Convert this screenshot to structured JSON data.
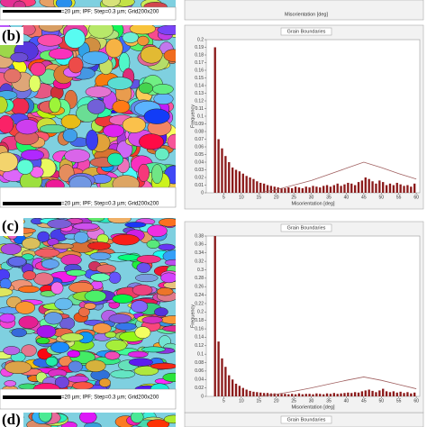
{
  "top_fragment": {
    "caption": "=20 µm; IPF; Step=0.3 µm; Grid200x200",
    "x_label": "Misorientation [deg]"
  },
  "panels": [
    {
      "label": "(b)",
      "map_caption": "=20 µm; IPF; Step=0.3 µm; Grid200x200"
    },
    {
      "label": "(c)",
      "map_caption": "=20 µm; IPF; Step=0.3 µm; Grid200x200"
    },
    {
      "label": "(d)",
      "chart_title": "Grain Boundaries"
    }
  ],
  "chart_data": [
    {
      "type": "histogram",
      "title": "Grain Boundaries",
      "x_label": "Misorientation [deg]",
      "y_label": "Frequency",
      "color": "#8b1a1a",
      "bins": [
        2,
        3,
        4,
        5,
        6,
        7,
        8,
        9,
        10,
        11,
        12,
        13,
        14,
        15,
        16,
        17,
        18,
        19,
        20,
        21,
        22,
        23,
        24,
        25,
        26,
        27,
        28,
        29,
        30,
        31,
        32,
        33,
        34,
        35,
        36,
        37,
        38,
        39,
        40,
        41,
        42,
        43,
        44,
        45,
        46,
        47,
        48,
        49,
        50,
        51,
        52,
        53,
        54,
        55,
        56,
        57,
        58,
        59,
        60
      ],
      "values": [
        0.19,
        0.07,
        0.058,
        0.048,
        0.04,
        0.033,
        0.03,
        0.028,
        0.025,
        0.022,
        0.02,
        0.018,
        0.015,
        0.013,
        0.012,
        0.01,
        0.009,
        0.008,
        0.007,
        0.006,
        0.006,
        0.007,
        0.006,
        0.008,
        0.007,
        0.006,
        0.008,
        0.007,
        0.009,
        0.008,
        0.007,
        0.009,
        0.01,
        0.008,
        0.01,
        0.012,
        0.009,
        0.011,
        0.013,
        0.012,
        0.01,
        0.014,
        0.016,
        0.02,
        0.018,
        0.015,
        0.012,
        0.016,
        0.014,
        0.01,
        0.012,
        0.01,
        0.013,
        0.011,
        0.009,
        0.01,
        0.008,
        0.012
      ],
      "reference_line": {
        "color": "#a06060",
        "x": [
          15,
          20,
          25,
          30,
          35,
          40,
          45,
          50,
          55,
          60
        ],
        "values": [
          0,
          0.004,
          0.01,
          0.016,
          0.024,
          0.032,
          0.04,
          0.033,
          0.025,
          0.018
        ]
      },
      "xlim": [
        0,
        61
      ],
      "xticks": [
        5,
        10,
        15,
        20,
        25,
        30,
        35,
        40,
        45,
        50,
        55,
        60
      ],
      "ylim": [
        0,
        0.2
      ],
      "yticks": [
        0,
        0.01,
        0.02,
        0.03,
        0.04,
        0.05,
        0.06,
        0.07,
        0.08,
        0.09,
        0.1,
        0.11,
        0.12,
        0.13,
        0.14,
        0.15,
        0.16,
        0.17,
        0.18,
        0.19,
        0.2
      ]
    },
    {
      "type": "histogram",
      "title": "Grain Boundaries",
      "x_label": "Misorientation [deg]",
      "y_label": "Frequency",
      "color": "#8b1a1a",
      "bins": [
        2,
        3,
        4,
        5,
        6,
        7,
        8,
        9,
        10,
        11,
        12,
        13,
        14,
        15,
        16,
        17,
        18,
        19,
        20,
        21,
        22,
        23,
        24,
        25,
        26,
        27,
        28,
        29,
        30,
        31,
        32,
        33,
        34,
        35,
        36,
        37,
        38,
        39,
        40,
        41,
        42,
        43,
        44,
        45,
        46,
        47,
        48,
        49,
        50,
        51,
        52,
        53,
        54,
        55,
        56,
        57,
        58,
        59,
        60
      ],
      "values": [
        0.38,
        0.13,
        0.09,
        0.07,
        0.05,
        0.04,
        0.03,
        0.025,
        0.02,
        0.016,
        0.013,
        0.011,
        0.01,
        0.009,
        0.008,
        0.008,
        0.007,
        0.007,
        0.006,
        0.006,
        0.006,
        0.005,
        0.006,
        0.005,
        0.007,
        0.005,
        0.006,
        0.006,
        0.005,
        0.007,
        0.006,
        0.005,
        0.007,
        0.006,
        0.008,
        0.006,
        0.007,
        0.008,
        0.009,
        0.008,
        0.01,
        0.009,
        0.012,
        0.014,
        0.016,
        0.013,
        0.01,
        0.014,
        0.018,
        0.012,
        0.01,
        0.012,
        0.009,
        0.011,
        0.008,
        0.01,
        0.007,
        0.009
      ],
      "reference_line": {
        "color": "#a06060",
        "x": [
          15,
          20,
          25,
          30,
          35,
          40,
          45,
          50,
          55,
          60
        ],
        "values": [
          0,
          0.005,
          0.012,
          0.02,
          0.029,
          0.038,
          0.046,
          0.038,
          0.028,
          0.018
        ]
      },
      "xlim": [
        0,
        61
      ],
      "xticks": [
        5,
        10,
        15,
        20,
        25,
        30,
        35,
        40,
        45,
        50,
        55,
        60
      ],
      "ylim": [
        0,
        0.38
      ],
      "yticks": [
        0,
        0.02,
        0.04,
        0.06,
        0.08,
        0.1,
        0.12,
        0.14,
        0.16,
        0.18,
        0.2,
        0.22,
        0.24,
        0.26,
        0.28,
        0.3,
        0.32,
        0.34,
        0.36,
        0.38
      ]
    }
  ]
}
